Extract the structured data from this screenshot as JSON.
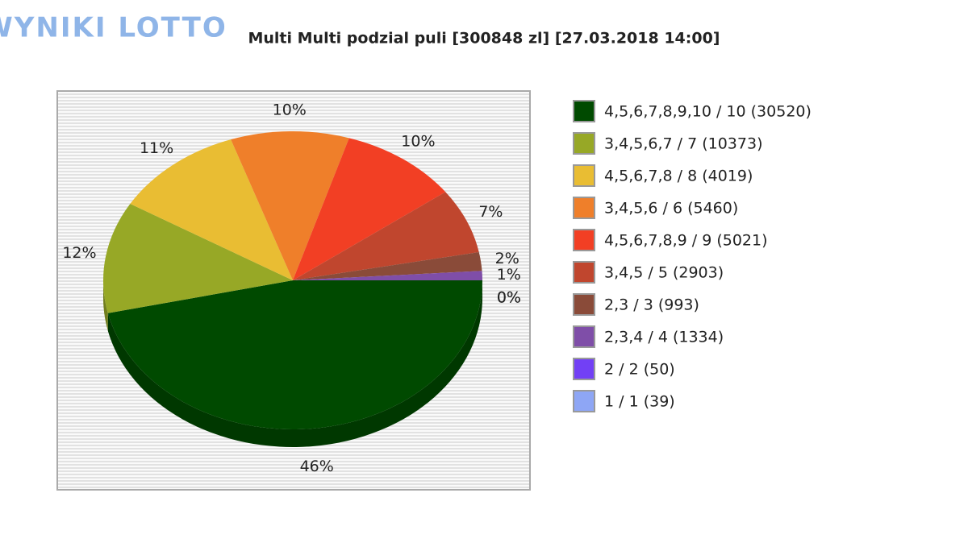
{
  "logo": "WYNIKI LOTTO",
  "chart_data": {
    "type": "pie",
    "title": "Multi Multi podzial puli [300848 zl] [27.03.2018 14:00]",
    "categories": [
      "4,5,6,7,8,9,10 / 10 (30520)",
      "3,4,5,6,7 / 7 (10373)",
      "4,5,6,7,8 / 8 (4019)",
      "3,4,5,6 / 6 (5460)",
      "4,5,6,7,8,9 / 9 (5021)",
      "3,4,5 / 5 (2903)",
      "2,3 / 3 (993)",
      "2,3,4 / 4 (1334)",
      "2 / 2 (50)",
      "1 / 1 (39)"
    ],
    "values": [
      46,
      12,
      11,
      10,
      10,
      7,
      2,
      1,
      0,
      0
    ],
    "value_labels": [
      "46%",
      "12%",
      "11%",
      "10%",
      "10%",
      "7%",
      "2%",
      "1%",
      "0%",
      "0%"
    ],
    "colors": [
      "#004a00",
      "#97a826",
      "#e9bd33",
      "#ef7f2a",
      "#f23f24",
      "#c0462e",
      "#8a4b39",
      "#7f4ea8",
      "#7240f5",
      "#8ea6f5"
    ],
    "legend": "right"
  }
}
